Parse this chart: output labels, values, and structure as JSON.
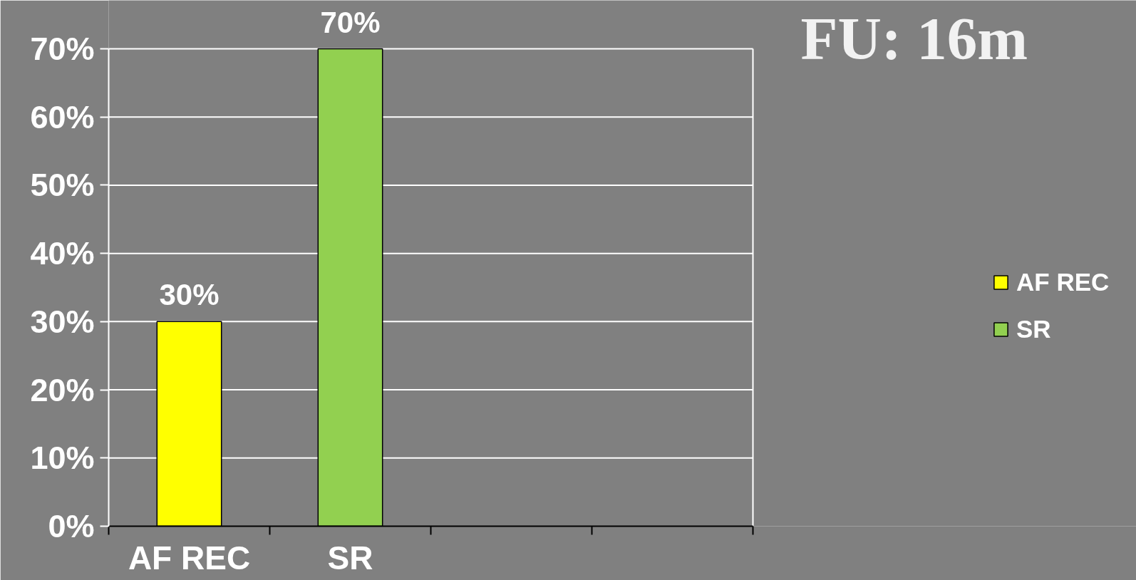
{
  "chart_data": {
    "type": "bar",
    "title": "FU: 16m",
    "categories": [
      "AF REC",
      "SR",
      null,
      null
    ],
    "series": [
      {
        "name": "AF REC",
        "color": "#ffff00",
        "values": [
          30,
          null,
          null,
          null
        ],
        "value_labels": [
          "30%",
          null,
          null,
          null
        ]
      },
      {
        "name": "SR",
        "color": "#92d050",
        "values": [
          null,
          70,
          null,
          null
        ],
        "value_labels": [
          null,
          "70%",
          null,
          null
        ]
      }
    ],
    "ylim": [
      0,
      70
    ],
    "yticks": [
      {
        "value": 0,
        "label": "0%"
      },
      {
        "value": 10,
        "label": "10%"
      },
      {
        "value": 20,
        "label": "20%"
      },
      {
        "value": 30,
        "label": "30%"
      },
      {
        "value": 40,
        "label": "40%"
      },
      {
        "value": 50,
        "label": "50%"
      },
      {
        "value": 60,
        "label": "60%"
      },
      {
        "value": 70,
        "label": "70%"
      }
    ],
    "grid": "y",
    "legend": "right"
  }
}
